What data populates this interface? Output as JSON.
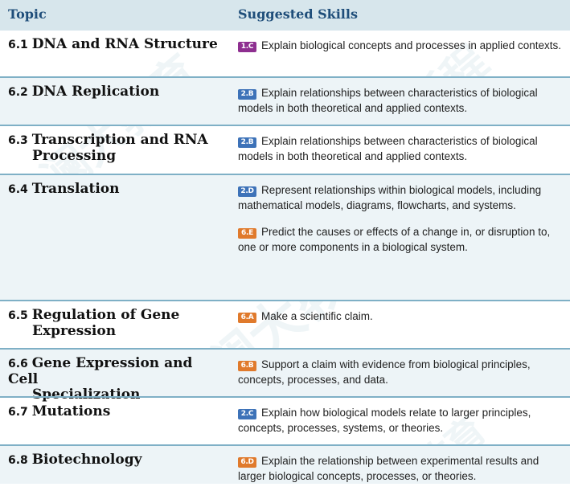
{
  "header": {
    "topic": "Topic",
    "skills": "Suggested Skills"
  },
  "colors": {
    "header_bg": "#d7e6ec",
    "row_shade": "#edf4f7",
    "separator": "#7fb0c6",
    "badge_purple": "#8e2f90",
    "badge_blue": "#3d72b8",
    "badge_orange": "#e07a2c"
  },
  "rows": [
    {
      "num": "6.1",
      "title": [
        "DNA and RNA Structure"
      ],
      "shade": false,
      "skills": [
        {
          "code": "1.C",
          "color": "#8e2f90",
          "text": "Explain biological concepts and processes in applied contexts."
        }
      ]
    },
    {
      "num": "6.2",
      "title": [
        "DNA Replication"
      ],
      "shade": true,
      "skills": [
        {
          "code": "2.B",
          "color": "#3d72b8",
          "text": "Explain relationships between characteristics of biological models in both theoretical and applied contexts."
        }
      ]
    },
    {
      "num": "6.3",
      "title": [
        "Transcription and RNA",
        "Processing"
      ],
      "shade": false,
      "skills": [
        {
          "code": "2.B",
          "color": "#3d72b8",
          "text": "Explain relationships between characteristics of biological models in both theoretical and applied contexts."
        }
      ]
    },
    {
      "num": "6.4",
      "title": [
        "Translation"
      ],
      "shade": true,
      "skills": [
        {
          "code": "2.D",
          "color": "#3d72b8",
          "text": "Represent relationships within biological models, including mathematical models, diagrams, flowcharts, and systems."
        },
        {
          "code": "6.E",
          "color": "#e07a2c",
          "text": "Predict the causes or effects of a change in, or disruption to, one or more components in a biological system."
        }
      ]
    },
    {
      "num": "6.5",
      "title": [
        "Regulation of Gene",
        "Expression"
      ],
      "shade": false,
      "skills": [
        {
          "code": "6.A",
          "color": "#e07a2c",
          "text": "Make a scientific claim."
        }
      ]
    },
    {
      "num": "6.6",
      "title": [
        "Gene Expression and Cell",
        "Specialization"
      ],
      "shade": true,
      "skills": [
        {
          "code": "6.B",
          "color": "#e07a2c",
          "text": "Support a claim with evidence from biological principles, concepts, processes, and data."
        }
      ]
    },
    {
      "num": "6.7",
      "title": [
        "Mutations"
      ],
      "shade": false,
      "skills": [
        {
          "code": "2.C",
          "color": "#3d72b8",
          "text": "Explain how biological models relate to larger principles, concepts, processes, systems, or theories."
        }
      ]
    },
    {
      "num": "6.8",
      "title": [
        "Biotechnology"
      ],
      "shade": true,
      "skills": [
        {
          "code": "6.D",
          "color": "#e07a2c",
          "text": "Explain the relationship between experimental results and larger biological concepts, processes, or theories."
        }
      ]
    }
  ]
}
